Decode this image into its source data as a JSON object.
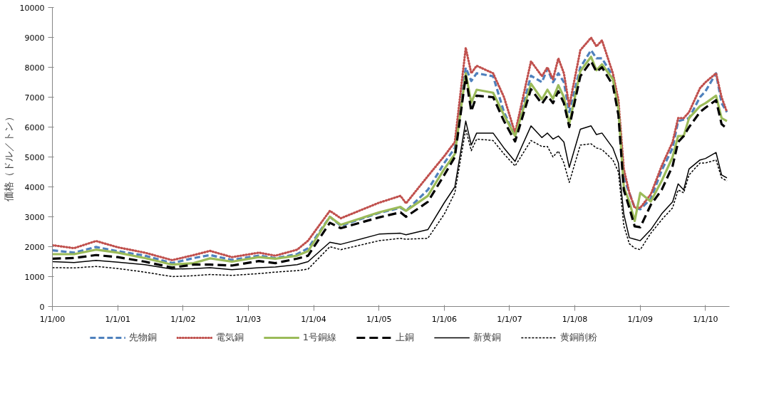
{
  "chart_data": {
    "type": "line",
    "ylabel": "価格（ドル／トン）",
    "x": [
      "2000-01",
      "2000-05",
      "2000-09",
      "2001-01",
      "2001-06",
      "2001-11",
      "2002-03",
      "2002-06",
      "2002-10",
      "2003-03",
      "2003-06",
      "2003-10",
      "2003-12",
      "2004-04",
      "2004-06",
      "2005-01",
      "2005-05",
      "2005-06",
      "2005-10",
      "2006-01",
      "2006-03",
      "2006-05",
      "2006-06",
      "2006-07",
      "2006-10",
      "2006-12",
      "2007-02",
      "2007-05",
      "2007-07",
      "2007-08",
      "2007-09",
      "2007-10",
      "2007-11",
      "2007-12",
      "2008-02",
      "2008-04",
      "2008-05",
      "2008-06",
      "2008-08",
      "2008-09",
      "2008-10",
      "2008-11",
      "2008-12",
      "2009-01",
      "2009-03",
      "2009-05",
      "2009-07",
      "2009-08",
      "2009-09",
      "2009-10",
      "2009-12",
      "2010-01",
      "2010-03",
      "2010-04",
      "2010-05"
    ],
    "series": [
      {
        "name": "先物銅",
        "color": "#4f81bd",
        "line_style": "dashed",
        "values": [
          1880,
          1800,
          1990,
          1850,
          1700,
          1450,
          1620,
          1720,
          1560,
          1700,
          1620,
          1750,
          1950,
          3000,
          2700,
          3130,
          3300,
          3200,
          3900,
          4800,
          5300,
          7990,
          7540,
          7800,
          7700,
          6500,
          5700,
          7720,
          7500,
          7950,
          7500,
          7800,
          7500,
          6500,
          8000,
          8570,
          8300,
          8300,
          7700,
          6700,
          4300,
          3800,
          3300,
          3250,
          3600,
          4550,
          5300,
          6200,
          6250,
          6300,
          7000,
          7200,
          7800,
          6800,
          6500
        ]
      },
      {
        "name": "電気銅",
        "color": "#c0504d",
        "line_style": "dotted",
        "values": [
          2050,
          1950,
          2190,
          1980,
          1800,
          1550,
          1720,
          1860,
          1650,
          1800,
          1700,
          1900,
          2200,
          3200,
          2950,
          3470,
          3700,
          3450,
          4360,
          5030,
          5500,
          8650,
          7800,
          8050,
          7800,
          7000,
          5800,
          8200,
          7700,
          8000,
          7600,
          8300,
          7800,
          6700,
          8570,
          8990,
          8700,
          8900,
          7800,
          6900,
          4600,
          3800,
          3300,
          3300,
          3750,
          4700,
          5500,
          6300,
          6300,
          6500,
          7300,
          7500,
          7800,
          7000,
          6500
        ]
      },
      {
        "name": "1号銅線",
        "color": "#9bbb59",
        "line_style": "solid",
        "values": [
          1750,
          1750,
          1900,
          1800,
          1620,
          1400,
          1450,
          1610,
          1500,
          1650,
          1600,
          1700,
          1850,
          3000,
          2730,
          3150,
          3330,
          3200,
          3700,
          4600,
          5100,
          7800,
          6820,
          7250,
          7150,
          6400,
          5700,
          7450,
          6930,
          7250,
          6950,
          7400,
          7000,
          6100,
          7870,
          8350,
          7900,
          8100,
          7600,
          6600,
          4000,
          3500,
          2860,
          3800,
          3510,
          4200,
          5000,
          5700,
          5700,
          6300,
          6700,
          6800,
          7050,
          6300,
          6200
        ]
      },
      {
        "name": "上銅",
        "color": "#000000",
        "line_style": "dashed",
        "values": [
          1600,
          1620,
          1720,
          1650,
          1500,
          1300,
          1400,
          1400,
          1370,
          1520,
          1450,
          1600,
          1700,
          2800,
          2620,
          2980,
          3150,
          3000,
          3500,
          4400,
          5000,
          7700,
          6530,
          7050,
          7000,
          6200,
          5520,
          7270,
          6780,
          7050,
          6800,
          7200,
          6800,
          6000,
          7700,
          8200,
          7850,
          8000,
          7400,
          6400,
          3900,
          3300,
          2680,
          2650,
          3400,
          3900,
          4700,
          5500,
          5700,
          6000,
          6500,
          6650,
          6900,
          6100,
          5950
        ]
      },
      {
        "name": "新黄銅",
        "color": "#000000",
        "line_style": "solid",
        "values": [
          1500,
          1470,
          1540,
          1480,
          1400,
          1250,
          1270,
          1300,
          1230,
          1300,
          1320,
          1400,
          1500,
          2150,
          2080,
          2420,
          2450,
          2400,
          2570,
          3470,
          4000,
          6200,
          5400,
          5800,
          5800,
          5300,
          4850,
          6040,
          5650,
          5800,
          5600,
          5700,
          5500,
          4650,
          5930,
          6040,
          5750,
          5800,
          5300,
          4800,
          3090,
          2300,
          2250,
          2200,
          2570,
          3100,
          3500,
          4100,
          3900,
          4600,
          4900,
          4950,
          5150,
          4400,
          4300
        ]
      },
      {
        "name": "黄銅削粉",
        "color": "#000000",
        "line_style": "dashed",
        "values": [
          1300,
          1290,
          1340,
          1270,
          1150,
          1000,
          1030,
          1070,
          1040,
          1100,
          1150,
          1200,
          1250,
          2000,
          1900,
          2200,
          2280,
          2250,
          2280,
          3090,
          3800,
          5930,
          5210,
          5600,
          5550,
          5100,
          4700,
          5550,
          5350,
          5350,
          5000,
          5200,
          4800,
          4150,
          5400,
          5440,
          5300,
          5250,
          4900,
          4500,
          2700,
          2100,
          1950,
          1900,
          2450,
          2900,
          3300,
          3900,
          3800,
          4400,
          4800,
          4800,
          4900,
          4300,
          4200
        ]
      }
    ],
    "xlim": [
      "2000-01-01",
      "2010-05-15"
    ],
    "xticks": [
      {
        "value": "2000-01-01",
        "label": "1/1/00"
      },
      {
        "value": "2001-01-01",
        "label": "1/1/01"
      },
      {
        "value": "2002-01-01",
        "label": "1/1/02"
      },
      {
        "value": "2003-01-01",
        "label": "1/1/03"
      },
      {
        "value": "2004-01-01",
        "label": "1/1/04"
      },
      {
        "value": "2005-01-01",
        "label": "1/1/05"
      },
      {
        "value": "2006-01-01",
        "label": "1/1/06"
      },
      {
        "value": "2007-01-01",
        "label": "1/1/07"
      },
      {
        "value": "2008-01-01",
        "label": "1/1/08"
      },
      {
        "value": "2009-01-01",
        "label": "1/1/09"
      },
      {
        "value": "2010-01-01",
        "label": "1/1/10"
      }
    ],
    "ylim": [
      0,
      10000
    ],
    "yticks": [
      0,
      1000,
      2000,
      3000,
      4000,
      5000,
      6000,
      7000,
      8000,
      9000,
      10000
    ],
    "grid": false,
    "legend": "bottom",
    "marker": "none"
  }
}
